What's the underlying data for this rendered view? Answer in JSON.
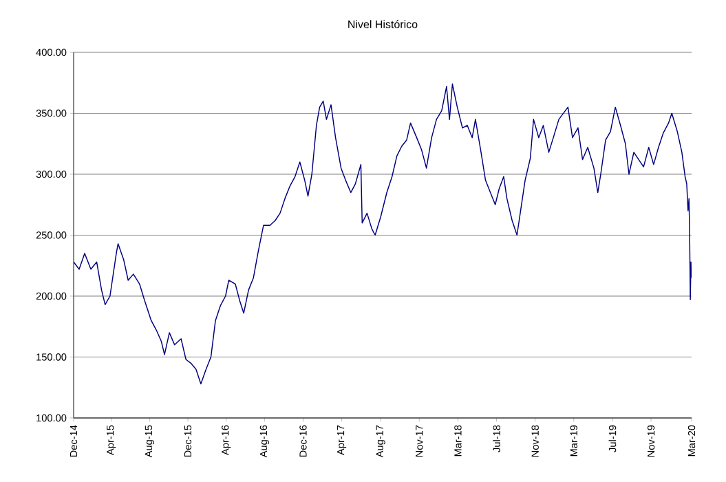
{
  "chart_data": {
    "type": "line",
    "title": "Nivel Histórico",
    "color": "#000080",
    "grid": "y",
    "marker": "none",
    "line_style": "solid",
    "ylim": [
      100,
      400
    ],
    "yticks": [
      {
        "value": 100,
        "label": "100.00"
      },
      {
        "value": 150,
        "label": "150.00"
      },
      {
        "value": 200,
        "label": "200.00"
      },
      {
        "value": 250,
        "label": "250.00"
      },
      {
        "value": 300,
        "label": "300.00"
      },
      {
        "value": 350,
        "label": "350.00"
      },
      {
        "value": 400,
        "label": "400.00"
      }
    ],
    "xlim": [
      "2014-12-29",
      "2020-03-16"
    ],
    "xticks": [
      {
        "value": "2014-12-29",
        "label": "Dec-14"
      },
      {
        "value": "2015-04-24",
        "label": "Apr-15"
      },
      {
        "value": "2015-08-20",
        "label": "Aug-15"
      },
      {
        "value": "2015-12-16",
        "label": "Dec-15"
      },
      {
        "value": "2016-04-12",
        "label": "Apr-16"
      },
      {
        "value": "2016-08-08",
        "label": "Aug-16"
      },
      {
        "value": "2016-12-05",
        "label": "Dec-16"
      },
      {
        "value": "2017-04-03",
        "label": "Apr-17"
      },
      {
        "value": "2017-08-01",
        "label": "Aug-17"
      },
      {
        "value": "2017-11-28",
        "label": "Nov-17"
      },
      {
        "value": "2018-03-27",
        "label": "Mar-18"
      },
      {
        "value": "2018-07-24",
        "label": "Jul-18"
      },
      {
        "value": "2018-11-20",
        "label": "Nov-18"
      },
      {
        "value": "2019-03-19",
        "label": "Mar-19"
      },
      {
        "value": "2019-07-16",
        "label": "Jul-19"
      },
      {
        "value": "2019-11-12",
        "label": "Nov-19"
      },
      {
        "value": "2020-03-16",
        "label": "Mar-20"
      }
    ],
    "x": [
      "2014-12-29",
      "2015-01-15",
      "2015-02-01",
      "2015-02-20",
      "2015-03-10",
      "2015-03-25",
      "2015-04-05",
      "2015-04-20",
      "2015-05-10",
      "2015-05-15",
      "2015-06-01",
      "2015-06-15",
      "2015-07-01",
      "2015-07-20",
      "2015-08-05",
      "2015-08-25",
      "2015-09-10",
      "2015-09-25",
      "2015-10-05",
      "2015-10-20",
      "2015-11-05",
      "2015-11-25",
      "2015-12-10",
      "2015-12-25",
      "2016-01-10",
      "2016-01-25",
      "2016-02-10",
      "2016-02-25",
      "2016-03-10",
      "2016-03-25",
      "2016-04-10",
      "2016-04-20",
      "2016-05-10",
      "2016-05-25",
      "2016-06-05",
      "2016-06-20",
      "2016-07-05",
      "2016-07-20",
      "2016-08-05",
      "2016-08-25",
      "2016-09-10",
      "2016-09-25",
      "2016-10-10",
      "2016-10-25",
      "2016-11-10",
      "2016-11-25",
      "2016-12-10",
      "2016-12-20",
      "2017-01-01",
      "2017-01-15",
      "2017-01-25",
      "2017-02-05",
      "2017-02-15",
      "2017-03-01",
      "2017-03-15",
      "2017-04-01",
      "2017-04-15",
      "2017-05-01",
      "2017-05-15",
      "2017-06-01",
      "2017-06-05",
      "2017-06-20",
      "2017-07-05",
      "2017-07-15",
      "2017-08-01",
      "2017-08-20",
      "2017-09-05",
      "2017-09-20",
      "2017-10-05",
      "2017-10-20",
      "2017-11-01",
      "2017-11-20",
      "2017-12-05",
      "2017-12-20",
      "2018-01-05",
      "2018-01-20",
      "2018-02-05",
      "2018-02-20",
      "2018-03-01",
      "2018-03-10",
      "2018-03-25",
      "2018-04-10",
      "2018-04-25",
      "2018-05-10",
      "2018-05-20",
      "2018-06-05",
      "2018-06-20",
      "2018-07-05",
      "2018-07-20",
      "2018-08-01",
      "2018-08-15",
      "2018-08-25",
      "2018-09-10",
      "2018-09-25",
      "2018-10-05",
      "2018-10-20",
      "2018-11-05",
      "2018-11-15",
      "2018-12-01",
      "2018-12-15",
      "2019-01-01",
      "2019-01-15",
      "2019-02-01",
      "2019-02-15",
      "2019-03-01",
      "2019-03-15",
      "2019-04-01",
      "2019-04-15",
      "2019-05-01",
      "2019-05-20",
      "2019-06-01",
      "2019-06-10",
      "2019-06-25",
      "2019-07-10",
      "2019-07-25",
      "2019-08-10",
      "2019-08-25",
      "2019-09-05",
      "2019-09-20",
      "2019-10-05",
      "2019-10-20",
      "2019-11-05",
      "2019-11-20",
      "2019-12-05",
      "2019-12-20",
      "2020-01-05",
      "2020-01-15",
      "2020-02-01",
      "2020-02-15",
      "2020-02-25",
      "2020-03-01",
      "2020-03-05",
      "2020-03-08",
      "2020-03-10",
      "2020-03-12",
      "2020-03-14",
      "2020-03-15"
    ],
    "values": [
      228,
      222,
      235,
      222,
      228,
      205,
      193,
      200,
      236,
      243,
      230,
      213,
      218,
      210,
      196,
      180,
      172,
      163,
      152,
      170,
      160,
      165,
      148,
      145,
      140,
      128,
      140,
      150,
      180,
      192,
      200,
      213,
      210,
      195,
      186,
      205,
      215,
      237,
      258,
      258,
      262,
      268,
      280,
      290,
      298,
      310,
      295,
      282,
      300,
      340,
      355,
      360,
      345,
      357,
      330,
      305,
      295,
      285,
      292,
      308,
      260,
      268,
      255,
      250,
      265,
      285,
      298,
      315,
      323,
      328,
      342,
      330,
      320,
      305,
      330,
      345,
      352,
      372,
      345,
      374,
      355,
      338,
      340,
      330,
      345,
      320,
      295,
      285,
      275,
      288,
      298,
      280,
      262,
      250,
      268,
      295,
      313,
      345,
      330,
      340,
      318,
      330,
      345,
      350,
      355,
      330,
      338,
      312,
      322,
      305,
      285,
      300,
      328,
      335,
      355,
      340,
      325,
      300,
      318,
      312,
      306,
      322,
      308,
      322,
      334,
      342,
      350,
      335,
      318,
      298,
      292,
      270,
      280,
      250,
      197,
      228,
      215
    ]
  }
}
